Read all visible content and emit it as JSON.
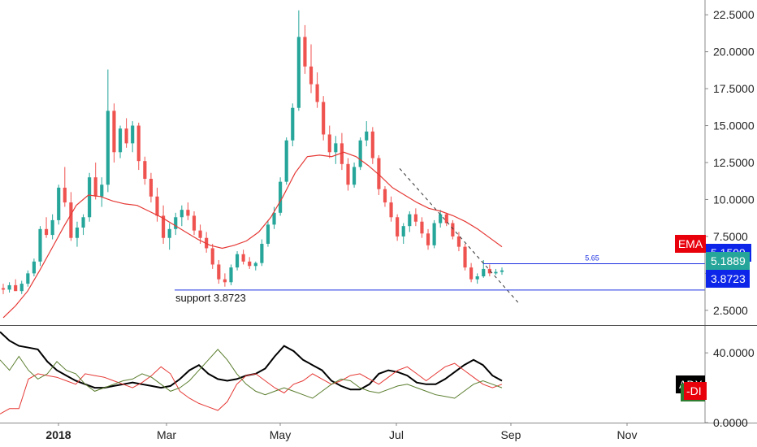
{
  "chart_data": [
    {
      "type": "candlestick",
      "ylim": [
        1.5,
        23.5
      ],
      "y_ticks": [
        "22.5000",
        "20.0000",
        "17.5000",
        "15.0000",
        "12.5000",
        "10.0000",
        "7.5000",
        "5.0000",
        "2.5000"
      ],
      "y_tick_values": [
        22.5,
        20,
        17.5,
        15,
        12.5,
        10,
        7.5,
        5,
        2.5
      ],
      "x_ticks": [
        "2018",
        "Mar",
        "May",
        "Jul",
        "Sep",
        "Nov"
      ],
      "ohlc": [
        [
          4.0,
          4.3,
          3.6,
          3.9
        ],
        [
          3.9,
          4.4,
          3.7,
          4.2
        ],
        [
          4.2,
          4.6,
          3.8,
          3.8
        ],
        [
          3.8,
          4.5,
          3.6,
          4.3
        ],
        [
          4.3,
          5.2,
          4.1,
          5.0
        ],
        [
          5.0,
          6.0,
          4.8,
          5.8
        ],
        [
          5.8,
          8.2,
          5.5,
          8.0
        ],
        [
          8.0,
          8.8,
          7.4,
          7.6
        ],
        [
          7.6,
          9.0,
          7.3,
          8.6
        ],
        [
          8.6,
          11.0,
          8.3,
          10.8
        ],
        [
          10.8,
          12.2,
          9.5,
          9.8
        ],
        [
          9.8,
          10.5,
          7.2,
          7.4
        ],
        [
          7.4,
          8.5,
          6.8,
          8.1
        ],
        [
          8.1,
          9.0,
          7.6,
          8.8
        ],
        [
          8.8,
          11.8,
          8.5,
          11.5
        ],
        [
          11.5,
          12.5,
          10.0,
          10.2
        ],
        [
          10.2,
          11.5,
          9.5,
          11.0
        ],
        [
          11.0,
          18.8,
          10.5,
          16.0
        ],
        [
          16.0,
          16.5,
          12.5,
          13.2
        ],
        [
          13.2,
          15.0,
          12.8,
          14.8
        ],
        [
          14.8,
          15.5,
          13.5,
          13.8
        ],
        [
          13.8,
          15.3,
          13.2,
          15.0
        ],
        [
          15.0,
          15.2,
          12.0,
          12.6
        ],
        [
          12.6,
          12.9,
          11.0,
          11.4
        ],
        [
          11.4,
          11.8,
          9.8,
          10.2
        ],
        [
          10.2,
          10.8,
          8.5,
          8.9
        ],
        [
          8.9,
          9.6,
          7.0,
          7.4
        ],
        [
          7.4,
          8.4,
          6.6,
          8.0
        ],
        [
          8.0,
          9.1,
          7.6,
          8.8
        ],
        [
          8.8,
          9.6,
          8.2,
          9.3
        ],
        [
          9.3,
          9.8,
          8.6,
          8.9
        ],
        [
          8.9,
          9.2,
          7.6,
          7.9
        ],
        [
          7.9,
          8.3,
          7.0,
          7.4
        ],
        [
          7.4,
          7.8,
          6.4,
          6.7
        ],
        [
          6.7,
          7.0,
          5.3,
          5.6
        ],
        [
          5.6,
          5.9,
          4.3,
          4.6
        ],
        [
          4.6,
          5.0,
          4.1,
          4.4
        ],
        [
          4.4,
          5.6,
          4.2,
          5.4
        ],
        [
          5.4,
          6.5,
          5.2,
          6.3
        ],
        [
          6.3,
          6.6,
          5.6,
          5.8
        ],
        [
          5.8,
          6.1,
          5.3,
          5.5
        ],
        [
          5.5,
          5.8,
          5.2,
          5.7
        ],
        [
          5.7,
          7.3,
          5.5,
          7.0
        ],
        [
          7.0,
          8.6,
          6.8,
          8.3
        ],
        [
          8.3,
          9.5,
          8.0,
          9.1
        ],
        [
          9.1,
          11.5,
          8.9,
          11.2
        ],
        [
          11.2,
          14.2,
          11.0,
          14.0
        ],
        [
          14.0,
          16.5,
          13.6,
          16.2
        ],
        [
          16.2,
          22.8,
          16.0,
          21.0
        ],
        [
          21.0,
          21.8,
          18.5,
          19.0
        ],
        [
          19.0,
          20.5,
          17.2,
          17.8
        ],
        [
          17.8,
          18.6,
          16.2,
          16.6
        ],
        [
          16.6,
          17.0,
          14.0,
          14.4
        ],
        [
          14.4,
          15.0,
          12.8,
          13.2
        ],
        [
          13.2,
          14.3,
          12.4,
          13.8
        ],
        [
          13.8,
          14.5,
          12.0,
          12.4
        ],
        [
          12.4,
          12.8,
          10.6,
          11.0
        ],
        [
          11.0,
          12.5,
          10.8,
          12.2
        ],
        [
          12.2,
          14.2,
          12.0,
          14.0
        ],
        [
          14.0,
          15.3,
          13.6,
          14.6
        ],
        [
          14.6,
          14.9,
          12.4,
          12.8
        ],
        [
          12.8,
          13.0,
          10.3,
          10.7
        ],
        [
          10.7,
          10.9,
          9.5,
          9.8
        ],
        [
          9.8,
          10.2,
          8.5,
          8.8
        ],
        [
          8.8,
          9.0,
          7.2,
          7.5
        ],
        [
          7.5,
          8.4,
          7.0,
          8.2
        ],
        [
          8.2,
          9.2,
          7.8,
          9.0
        ],
        [
          9.0,
          9.4,
          8.2,
          8.5
        ],
        [
          8.5,
          8.8,
          7.4,
          7.7
        ],
        [
          7.7,
          8.0,
          6.6,
          6.9
        ],
        [
          6.9,
          8.6,
          6.7,
          8.4
        ],
        [
          8.4,
          9.3,
          8.1,
          9.0
        ],
        [
          9.0,
          9.1,
          8.2,
          8.4
        ],
        [
          8.4,
          8.6,
          7.3,
          7.5
        ],
        [
          7.5,
          7.8,
          6.5,
          6.8
        ],
        [
          6.8,
          7.0,
          5.2,
          5.4
        ],
        [
          5.4,
          5.7,
          4.4,
          4.6
        ],
        [
          4.6,
          5.0,
          4.3,
          4.8
        ],
        [
          4.8,
          5.9,
          4.7,
          5.3
        ],
        [
          5.3,
          5.6,
          4.8,
          5.0
        ],
        [
          5.0,
          5.3,
          4.9,
          5.1
        ],
        [
          5.1,
          5.4,
          4.9,
          5.2
        ]
      ],
      "ema": [
        2.0,
        2.8,
        3.8,
        5.2,
        6.7,
        8.2,
        9.6,
        10.3,
        10.2,
        9.9,
        9.7,
        9.6,
        9.2,
        8.8,
        8.3,
        7.8,
        7.3,
        6.9,
        6.7,
        6.9,
        7.2,
        7.8,
        8.8,
        10.2,
        11.8,
        12.9,
        13.0,
        12.9,
        13.2,
        12.9,
        12.3,
        11.6,
        10.8,
        10.3,
        9.8,
        9.4,
        9.2,
        8.9,
        8.5,
        8.0,
        7.4,
        6.8
      ],
      "ema_label": "EMA",
      "price_labels": [
        "5.1889",
        "3.8723"
      ],
      "price_values": [
        5.1889,
        3.8723
      ],
      "hidden_label": "5.1599",
      "line_values": [
        5.65,
        3.8723
      ],
      "line_5_65_label": "5.65",
      "support_label": "support 3.8723",
      "colors": {
        "up": "#26a69a",
        "down": "#ef5350",
        "ema": "#e53935",
        "hline": "#1a2fe0",
        "ema_tag": "#e8000b",
        "price_tag": "#26a69a",
        "support_tag": "#0c25e8"
      }
    },
    {
      "type": "line",
      "ylim": [
        0,
        55
      ],
      "y_ticks": [
        "40.0000",
        "0.0000"
      ],
      "y_tick_values": [
        40,
        0
      ],
      "series": [
        {
          "name": "ADX",
          "color": "#000000",
          "values": [
            52,
            47,
            44,
            43,
            42,
            35,
            30,
            27,
            24,
            22,
            20,
            20,
            21,
            22,
            23,
            22,
            21,
            20,
            21,
            25,
            30,
            33,
            28,
            25,
            24,
            25,
            27,
            28,
            31,
            38,
            44,
            41,
            36,
            33,
            30,
            24,
            21,
            19,
            19,
            22,
            28,
            30,
            29,
            27,
            23,
            22,
            22,
            25,
            29,
            33,
            36,
            33,
            27,
            24
          ]
        },
        {
          "name": "-DI",
          "color": "#e53935",
          "values": [
            5,
            8,
            8,
            25,
            28,
            27,
            26,
            24,
            22,
            28,
            27,
            26,
            24,
            22,
            20,
            23,
            27,
            32,
            28,
            18,
            14,
            11,
            9,
            7,
            12,
            22,
            27,
            28,
            24,
            20,
            17,
            22,
            24,
            28,
            25,
            22,
            24,
            27,
            28,
            25,
            22,
            26,
            30,
            32,
            28,
            24,
            28,
            32,
            34,
            30,
            26,
            22,
            20,
            22
          ]
        },
        {
          "name": "+DI",
          "color": "#5a7d2e",
          "values": [
            36,
            30,
            38,
            30,
            25,
            28,
            35,
            30,
            28,
            22,
            18,
            20,
            22,
            24,
            25,
            28,
            26,
            22,
            18,
            20,
            24,
            30,
            36,
            42,
            36,
            28,
            22,
            18,
            16,
            18,
            20,
            18,
            16,
            14,
            18,
            22,
            25,
            24,
            20,
            18,
            17,
            19,
            21,
            22,
            20,
            18,
            16,
            15,
            14,
            18,
            22,
            24,
            22,
            20
          ]
        }
      ],
      "adx_label": "ADX",
      "di_label": "-DI"
    }
  ]
}
